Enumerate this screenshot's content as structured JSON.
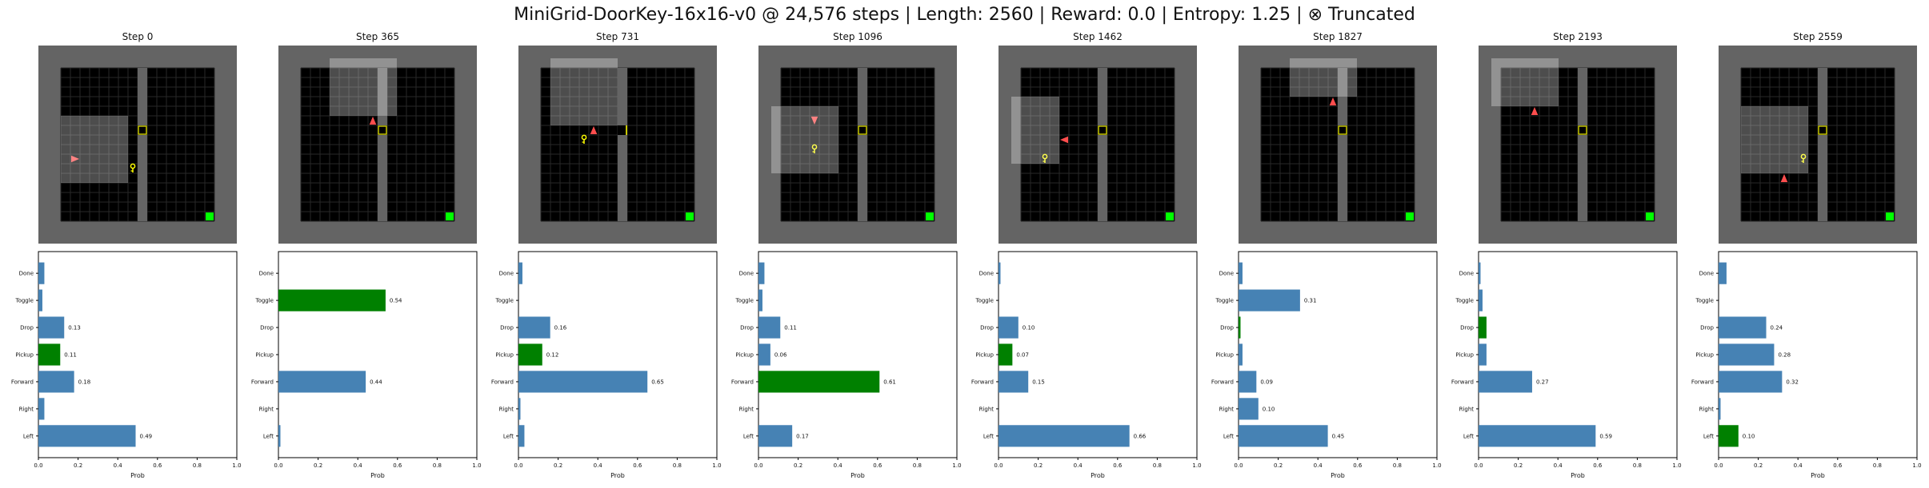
{
  "title": "MiniGrid-DoorKey-16x16-v0 @ 24,576 steps | Length: 2560 | Reward: 0.0 | Entropy: 1.25 | ⊗ Truncated",
  "colors": {
    "bar_default": "#4682b4",
    "bar_selected": "#008000",
    "grid_cell": "#000000",
    "wall": "#646464",
    "view_overlay": "#ffffff",
    "agent": "#ff4d4d",
    "key": "#ffff00",
    "door": "#c8c800",
    "goal": "#00ff00"
  },
  "chart_data": {
    "type": "bar",
    "orientation": "horizontal",
    "categories": [
      "Done",
      "Toggle",
      "Drop",
      "Pickup",
      "Forward",
      "Right",
      "Left"
    ],
    "xlabel": "Prob",
    "xlim": [
      0,
      1.0
    ],
    "xticks": [
      "0.0",
      "0.2",
      "0.4",
      "0.6",
      "0.8",
      "1.0"
    ],
    "panels": [
      {
        "title": "Step 0",
        "values": [
          0.03,
          0.02,
          0.13,
          0.11,
          0.18,
          0.03,
          0.49
        ],
        "labels": [
          "",
          "",
          "0.13",
          "0.11",
          "0.18",
          "",
          "0.49"
        ],
        "selected": "Pickup",
        "env": {
          "agent": [
            1,
            9
          ],
          "agent_dir": "right",
          "key": [
            7,
            10
          ],
          "door_y": 6,
          "door_open": false,
          "view": {
            "x": 1,
            "y": 6,
            "w": 7,
            "h": 7
          }
        }
      },
      {
        "title": "Step 365",
        "values": [
          0.0,
          0.54,
          0.0,
          0.0,
          0.44,
          0.0,
          0.01
        ],
        "labels": [
          "",
          "0.54",
          "",
          "",
          "0.44",
          "",
          ""
        ],
        "selected": "Toggle",
        "env": {
          "agent": [
            7,
            5
          ],
          "agent_dir": "up",
          "key": null,
          "door_y": 6,
          "door_open": false,
          "view": {
            "x": 4,
            "y": 0,
            "w": 7,
            "h": 6
          }
        }
      },
      {
        "title": "Step 731",
        "values": [
          0.02,
          0.0,
          0.16,
          0.12,
          0.65,
          0.01,
          0.03
        ],
        "labels": [
          "",
          "",
          "0.16",
          "0.12",
          "0.65",
          "",
          ""
        ],
        "selected": "Pickup",
        "env": {
          "agent": [
            5,
            6
          ],
          "agent_dir": "up",
          "key": [
            4,
            7
          ],
          "door_y": 6,
          "door_open": true,
          "view": {
            "x": 2,
            "y": 0,
            "w": 7,
            "h": 7
          }
        }
      },
      {
        "title": "Step 1096",
        "values": [
          0.03,
          0.02,
          0.11,
          0.06,
          0.61,
          0.0,
          0.17
        ],
        "labels": [
          "",
          "",
          "0.11",
          "0.06",
          "0.61",
          "",
          "0.17"
        ],
        "selected": "Forward",
        "env": {
          "agent": [
            3,
            5
          ],
          "agent_dir": "down",
          "key": [
            3,
            8
          ],
          "door_y": 6,
          "door_open": false,
          "view": {
            "x": 0,
            "y": 5,
            "w": 7,
            "h": 7
          }
        }
      },
      {
        "title": "Step 1462",
        "values": [
          0.01,
          0.0,
          0.1,
          0.07,
          0.15,
          0.0,
          0.66
        ],
        "labels": [
          "",
          "",
          "0.10",
          "0.07",
          "0.15",
          "",
          "0.66"
        ],
        "selected": "Pickup",
        "env": {
          "agent": [
            4,
            7
          ],
          "agent_dir": "left",
          "key": [
            2,
            9
          ],
          "door_y": 6,
          "door_open": false,
          "view": {
            "x": 0,
            "y": 4,
            "w": 5,
            "h": 7
          }
        }
      },
      {
        "title": "Step 1827",
        "values": [
          0.02,
          0.31,
          0.01,
          0.02,
          0.09,
          0.1,
          0.45
        ],
        "labels": [
          "",
          "0.31",
          "",
          "",
          "0.09",
          "0.10",
          "0.45"
        ],
        "selected": "Drop",
        "env": {
          "agent": [
            7,
            3
          ],
          "agent_dir": "up",
          "key": null,
          "door_y": 6,
          "door_open": false,
          "view": {
            "x": 4,
            "y": 0,
            "w": 7,
            "h": 4
          }
        }
      },
      {
        "title": "Step 2193",
        "values": [
          0.01,
          0.02,
          0.04,
          0.04,
          0.27,
          0.0,
          0.59
        ],
        "labels": [
          "",
          "",
          "",
          "",
          "0.27",
          "",
          "0.59"
        ],
        "selected": "Drop",
        "env": {
          "agent": [
            3,
            4
          ],
          "agent_dir": "up",
          "key": null,
          "door_y": 6,
          "door_open": false,
          "view": {
            "x": 0,
            "y": 0,
            "w": 7,
            "h": 5
          }
        }
      },
      {
        "title": "Step 2559",
        "values": [
          0.04,
          0.0,
          0.24,
          0.28,
          0.32,
          0.01,
          0.1
        ],
        "labels": [
          "",
          "",
          "0.24",
          "0.28",
          "0.32",
          "",
          "0.10"
        ],
        "selected": "Left",
        "env": {
          "agent": [
            4,
            11
          ],
          "agent_dir": "up",
          "key": [
            6,
            9
          ],
          "door_y": 6,
          "door_open": false,
          "view": {
            "x": 1,
            "y": 5,
            "w": 7,
            "h": 7
          }
        }
      }
    ]
  }
}
